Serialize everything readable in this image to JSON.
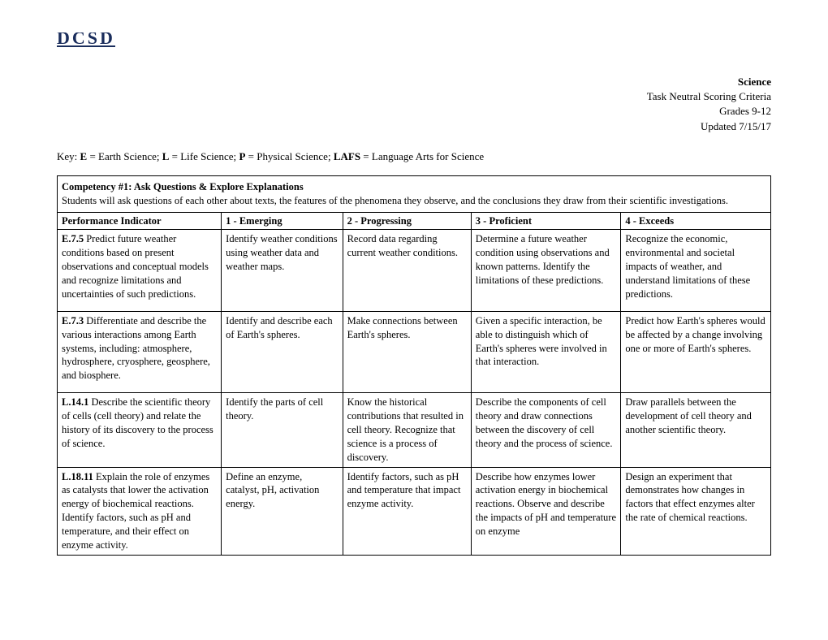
{
  "logo": {
    "text": "DCSD"
  },
  "header": {
    "subject": "Science",
    "line2": "Task Neutral Scoring Criteria",
    "line3": "Grades 9-12",
    "line4": "Updated 7/15/17"
  },
  "key": {
    "prefix": "Key:  ",
    "e_label": "E",
    "e_text": " = Earth Science; ",
    "l_label": "L",
    "l_text": " = Life Science; ",
    "p_label": "P",
    "p_text": " = Physical Science; ",
    "lafs_label": "LAFS",
    "lafs_text": " = Language Arts for Science"
  },
  "competency": {
    "title": "Competency #1:  Ask Questions & Explore Explanations",
    "description": "Students will ask questions of each other about texts, the features of the phenomena they observe, and the conclusions they draw from their scientific investigations."
  },
  "headers": {
    "pi": "Performance Indicator",
    "c1": "1 - Emerging",
    "c2": "2 - Progressing",
    "c3": "3 - Proficient",
    "c4": "4 - Exceeds"
  },
  "rows": [
    {
      "code": "E.7.5",
      "pi": " Predict future weather conditions based on present observations and conceptual models and recognize limitations and uncertainties of such predictions.",
      "c1": "Identify weather conditions using weather data and weather maps.",
      "c2": "Record data regarding current weather conditions.",
      "c3": "Determine a future weather condition using observations and known patterns. Identify the limitations of these predictions.",
      "c4": "Recognize the economic, environmental and societal impacts of weather, and understand limitations of these predictions."
    },
    {
      "code": "E.7.3",
      "pi": " Differentiate and describe the various interactions among Earth systems, including: atmosphere, hydrosphere, cryosphere, geosphere, and biosphere.",
      "c1": "Identify and describe each of Earth's spheres.",
      "c2": "Make connections between Earth's spheres.",
      "c3": "Given a specific interaction, be able to distinguish which of Earth's spheres were involved in that interaction.",
      "c4": "Predict how Earth's spheres would be affected by a change involving one or more of Earth's spheres."
    },
    {
      "code": "L.14.1",
      "pi": " Describe the scientific theory of cells (cell theory) and relate the history of its discovery to the process of science.",
      "c1": "Identify the parts of cell theory.",
      "c2": "Know the historical contributions that resulted in cell theory. Recognize that science is a process of discovery.",
      "c3": "Describe the components of cell theory and draw connections between the discovery of cell theory and the process of science.",
      "c4": "Draw parallels between the development of cell theory and another scientific theory."
    },
    {
      "code": "L.18.11",
      "pi": " Explain the role of enzymes as catalysts that lower the activation energy of biochemical reactions. Identify factors, such as pH and temperature, and their effect on enzyme activity.",
      "c1": "Define an enzyme, catalyst, pH, activation energy.",
      "c2": "Identify factors, such as pH and temperature that impact enzyme activity.",
      "c3": "Describe how enzymes lower activation energy in biochemical reactions. Observe and describe the impacts of pH and temperature on enzyme",
      "c4": "Design an experiment that demonstrates how changes in factors that effect enzymes alter the rate of chemical reactions."
    }
  ]
}
